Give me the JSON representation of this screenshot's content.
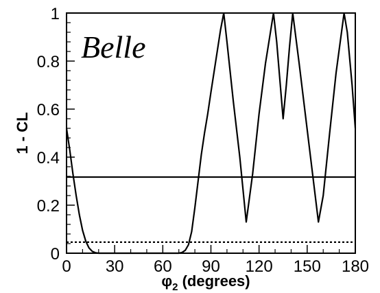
{
  "chart_data": {
    "type": "line",
    "title": "",
    "watermark": "Belle",
    "xlabel": {
      "symbol": "φ",
      "subscript": "2",
      "suffix": " (degrees)"
    },
    "ylabel": "1 - CL",
    "xlim": [
      0,
      180
    ],
    "ylim": [
      0,
      1
    ],
    "x_ticks": [
      0,
      30,
      60,
      90,
      120,
      150,
      180
    ],
    "y_ticks": [
      0,
      0.2,
      0.4,
      0.6,
      0.8,
      1
    ],
    "y_tick_labels": [
      "0",
      "0.2",
      "0.4",
      "0.6",
      "0.8",
      "1"
    ],
    "grid": false,
    "series": [
      {
        "style": "solid",
        "color": "#000000",
        "points": [
          [
            0,
            0.52
          ],
          [
            2,
            0.43
          ],
          [
            4,
            0.33
          ],
          [
            6,
            0.24
          ],
          [
            8,
            0.16
          ],
          [
            10,
            0.095
          ],
          [
            12,
            0.05
          ],
          [
            14,
            0.022
          ],
          [
            16,
            0.008
          ],
          [
            18,
            0.002
          ],
          [
            20,
            0.0
          ],
          [
            70,
            0.0
          ],
          [
            72,
            0.003
          ],
          [
            74,
            0.012
          ],
          [
            76,
            0.035
          ],
          [
            78,
            0.09
          ],
          [
            80,
            0.19
          ],
          [
            82,
            0.3
          ],
          [
            84,
            0.41
          ],
          [
            86,
            0.5
          ],
          [
            88,
            0.58
          ],
          [
            90,
            0.67
          ],
          [
            93,
            0.8
          ],
          [
            96,
            0.93
          ],
          [
            98,
            1.0
          ],
          [
            100,
            0.88
          ],
          [
            104,
            0.63
          ],
          [
            108,
            0.4
          ],
          [
            112,
            0.13
          ],
          [
            116,
            0.33
          ],
          [
            120,
            0.58
          ],
          [
            124,
            0.79
          ],
          [
            129,
            1.0
          ],
          [
            131,
            0.88
          ],
          [
            135,
            0.56
          ],
          [
            137,
            0.7
          ],
          [
            139,
            0.86
          ],
          [
            141,
            1.0
          ],
          [
            145,
            0.79
          ],
          [
            149,
            0.57
          ],
          [
            153,
            0.35
          ],
          [
            157,
            0.13
          ],
          [
            160,
            0.24
          ],
          [
            164,
            0.5
          ],
          [
            168,
            0.75
          ],
          [
            173,
            1.0
          ],
          [
            175,
            0.92
          ],
          [
            178,
            0.7
          ],
          [
            180,
            0.52
          ]
        ]
      },
      {
        "style": "solid",
        "color": "#000000",
        "points": [
          [
            0,
            0.317
          ],
          [
            180,
            0.317
          ]
        ]
      },
      {
        "style": "dotted",
        "color": "#000000",
        "points": [
          [
            0,
            0.046
          ],
          [
            180,
            0.046
          ]
        ]
      }
    ]
  }
}
